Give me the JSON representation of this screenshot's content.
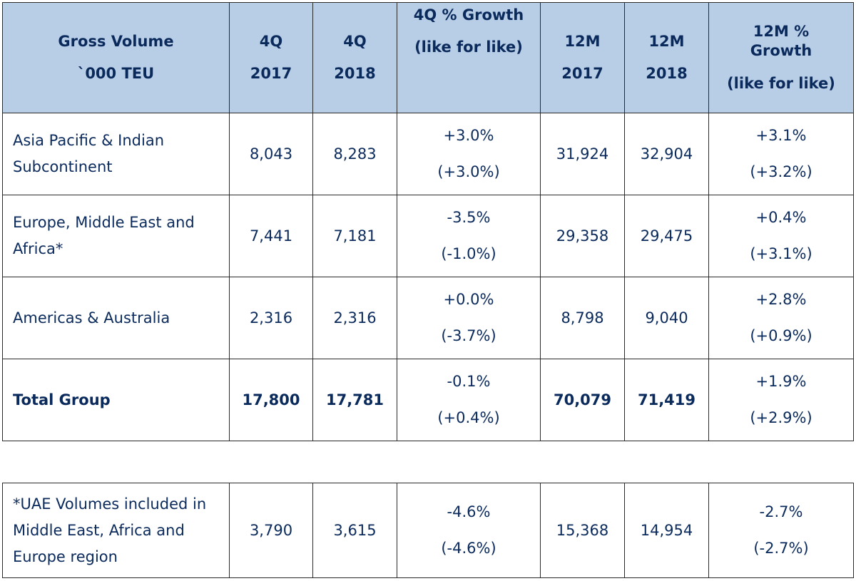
{
  "header": {
    "col0": [
      "Gross Volume",
      "`000 TEU"
    ],
    "col1": [
      "4Q",
      "2017"
    ],
    "col2": [
      "4Q",
      "2018"
    ],
    "col3": [
      "4Q % Growth",
      "(like for like)"
    ],
    "col4": [
      "12M",
      "2017"
    ],
    "col5": [
      "12M",
      "2018"
    ],
    "col6": [
      "12M %",
      "Growth",
      "(like for like)"
    ]
  },
  "rows": [
    {
      "region": "Asia Pacific & Indian Subcontinent",
      "q4_2017": "8,043",
      "q4_2018": "8,283",
      "q4_growth": "+3.0%",
      "q4_lfl": "(+3.0%)",
      "m12_2017": "31,924",
      "m12_2018": "32,904",
      "m12_growth": "+3.1%",
      "m12_lfl": "(+3.2%)"
    },
    {
      "region": "Europe, Middle East and Africa*",
      "q4_2017": "7,441",
      "q4_2018": "7,181",
      "q4_growth": "-3.5%",
      "q4_lfl": "(-1.0%)",
      "m12_2017": "29,358",
      "m12_2018": "29,475",
      "m12_growth": "+0.4%",
      "m12_lfl": "(+3.1%)"
    },
    {
      "region": "Americas & Australia",
      "q4_2017": "2,316",
      "q4_2018": "2,316",
      "q4_growth": "+0.0%",
      "q4_lfl": "(-3.7%)",
      "m12_2017": "8,798",
      "m12_2018": "9,040",
      "m12_growth": "+2.8%",
      "m12_lfl": "(+0.9%)"
    },
    {
      "region": "Total Group",
      "q4_2017": "17,800",
      "q4_2018": "17,781",
      "q4_growth": "-0.1%",
      "q4_lfl": "(+0.4%)",
      "m12_2017": "70,079",
      "m12_2018": "71,419",
      "m12_growth": "+1.9%",
      "m12_lfl": "(+2.9%)"
    }
  ],
  "uae_row": {
    "region": "*UAE Volumes included in Middle East, Africa and Europe region",
    "q4_2017": "3,790",
    "q4_2018": "3,615",
    "q4_growth": "-4.6%",
    "q4_lfl": "(-4.6%)",
    "m12_2017": "15,368",
    "m12_2018": "14,954",
    "m12_growth": "-2.7%",
    "m12_lfl": "(-2.7%)"
  },
  "colors": {
    "header_bg": "#b8cde6",
    "text": "#0b2a5c",
    "border": "#2a2a2a"
  }
}
